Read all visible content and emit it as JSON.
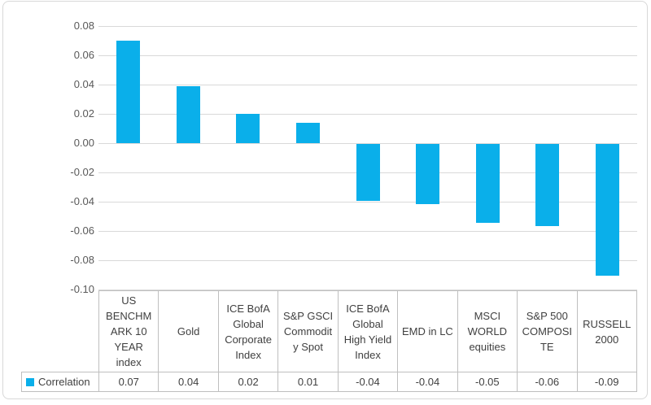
{
  "chart_data": {
    "type": "bar",
    "title": "",
    "categories": [
      "US BENCHMARK 10 YEAR index",
      "Gold",
      "ICE BofA Global Corporate Index",
      "S&P GSCI Commodity Spot",
      "ICE BofA Global High Yield Index",
      "EMD in LC",
      "MSCI WORLD equities",
      "S&P 500 COMPOSITE",
      "RUSSELL 2000"
    ],
    "series": [
      {
        "name": "Correlation",
        "values": [
          0.07,
          0.04,
          0.02,
          0.01,
          -0.04,
          -0.04,
          -0.05,
          -0.06,
          -0.09
        ]
      }
    ],
    "value_labels": [
      "0.07",
      "0.04",
      "0.02",
      "0.01",
      "-0.04",
      "-0.04",
      "-0.05",
      "-0.06",
      "-0.09"
    ],
    "plot_values": [
      0.07,
      0.039,
      0.02,
      0.014,
      -0.039,
      -0.041,
      -0.054,
      -0.056,
      -0.09
    ],
    "tick_labels": [
      "0.08",
      "0.06",
      "0.04",
      "0.02",
      "0.00",
      "-0.02",
      "-0.04",
      "-0.06",
      "-0.08",
      "-0.10"
    ],
    "ylim": [
      -0.1,
      0.08
    ],
    "grid": true,
    "legend_position": "bottom-table-left",
    "xlabel": "",
    "ylabel": ""
  },
  "colors": {
    "bar": "#0aafea",
    "gridline": "#d9d9d9",
    "table_border": "#bfbfbf",
    "axis_text": "#595959",
    "table_text": "#404040",
    "frame_border": "#d8d8d8"
  }
}
